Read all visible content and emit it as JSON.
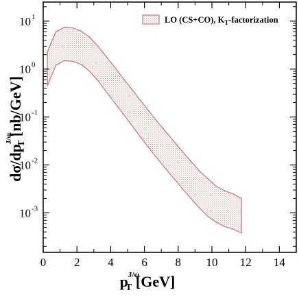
{
  "chart_data": {
    "type": "area",
    "title": "",
    "xlabel": {
      "main": "p",
      "sub": "T",
      "sup": "J/ψ",
      "unit": " [GeV]"
    },
    "ylabel": {
      "pre": "dσ/dp",
      "sub": "T",
      "sup": "J/ψ",
      "unit": " [nb/GeV]"
    },
    "xlim": [
      0,
      15
    ],
    "ylim": [
      0.00015,
      25
    ],
    "yscale": "log",
    "x_ticks": [
      0,
      2,
      4,
      6,
      8,
      10,
      12,
      14
    ],
    "y_ticks": [
      {
        "value": 10,
        "base": "10",
        "exp": "1"
      },
      {
        "value": 1,
        "base": "10",
        "exp": "0"
      },
      {
        "value": 0.1,
        "base": "10",
        "exp": "-1"
      },
      {
        "value": 0.01,
        "base": "10",
        "exp": "-2"
      },
      {
        "value": 0.001,
        "base": "10",
        "exp": "-3"
      }
    ],
    "grid": false,
    "legend_position": "top-right",
    "series": [
      {
        "name": "LO (CS+CO), K_T-factorization",
        "legend_text": {
          "pre": "LO (CS+CO), K",
          "sub": "T",
          "post": "-factorization"
        },
        "color": "#c27e7e",
        "x": [
          0.25,
          0.75,
          1.25,
          1.75,
          2.25,
          2.75,
          3.25,
          3.75,
          4.25,
          4.75,
          5.25,
          5.75,
          6.25,
          6.75,
          7.25,
          7.75,
          8.25,
          8.75,
          9.25,
          9.75,
          10.25,
          10.75,
          11.25,
          11.75
        ],
        "upper": [
          2.3,
          6.0,
          7.4,
          7.2,
          6.2,
          4.6,
          3.0,
          1.8,
          1.08,
          0.63,
          0.38,
          0.225,
          0.135,
          0.081,
          0.05,
          0.031,
          0.019,
          0.012,
          0.0075,
          0.0052,
          0.0036,
          0.0029,
          0.0025,
          0.002
        ],
        "lower": [
          0.45,
          1.2,
          1.5,
          1.45,
          1.25,
          0.9,
          0.57,
          0.33,
          0.195,
          0.115,
          0.067,
          0.039,
          0.023,
          0.0138,
          0.0084,
          0.0052,
          0.0032,
          0.002,
          0.00128,
          0.00085,
          0.00064,
          0.00052,
          0.00046,
          0.00038
        ]
      }
    ]
  }
}
